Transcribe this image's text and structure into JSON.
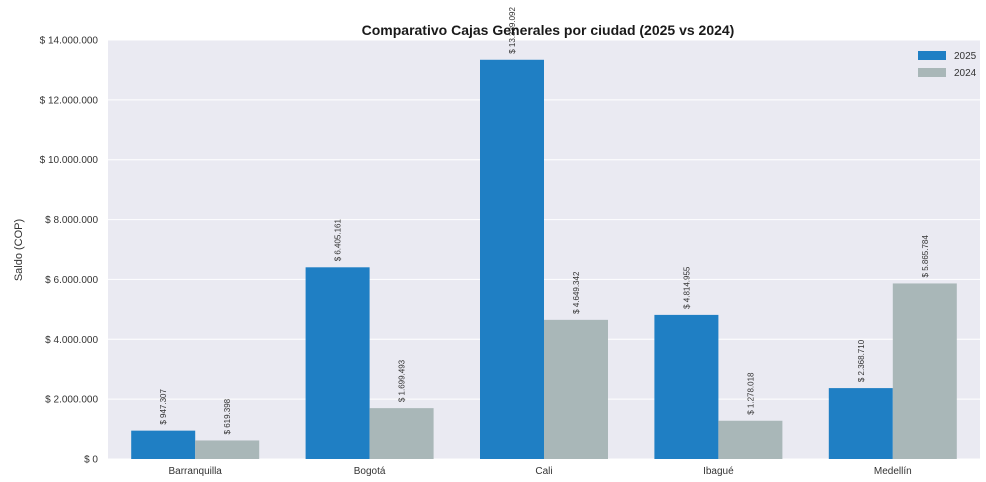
{
  "chart_data": {
    "type": "bar",
    "title": "Comparativo Cajas Generales por ciudad (2025 vs 2024)",
    "xlabel": "",
    "ylabel": "Saldo (COP)",
    "ylim": [
      0,
      14000000
    ],
    "yticks": [
      0,
      2000000,
      4000000,
      6000000,
      8000000,
      10000000,
      12000000,
      14000000
    ],
    "ytick_labels": [
      "$ 0",
      "$ 2.000.000",
      "$ 4.000.000",
      "$ 6.000.000",
      "$ 8.000.000",
      "$ 10.000.000",
      "$ 12.000.000",
      "$ 14.000.000"
    ],
    "categories": [
      "Barranquilla",
      "Bogotá",
      "Cali",
      "Ibagué",
      "Medellín"
    ],
    "series": [
      {
        "name": "2025",
        "color": "#1f7fc4",
        "values": [
          947307,
          6405161,
          13339092,
          4814955,
          2368710
        ],
        "labels": [
          "$ 947.307",
          "$ 6.405.161",
          "$ 13.339.092",
          "$ 4.814.955",
          "$ 2.368.710"
        ]
      },
      {
        "name": "2024",
        "color": "#a9b7b8",
        "values": [
          619398,
          1699493,
          4649342,
          1278018,
          5865784
        ],
        "labels": [
          "$ 619.398",
          "$ 1.699.493",
          "$ 4.649.342",
          "$ 1.278.018",
          "$ 5.865.784"
        ]
      }
    ],
    "grid": true,
    "legend_position": "top-right",
    "background": "#eaeaf2"
  }
}
